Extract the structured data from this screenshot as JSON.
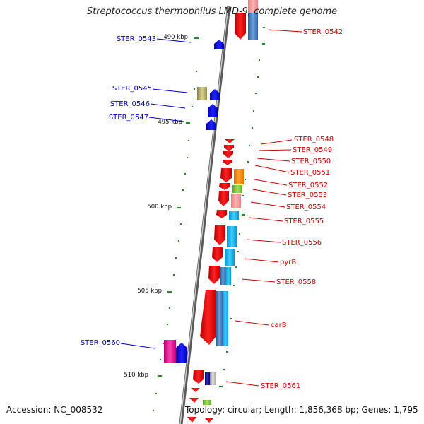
{
  "title": "Streptococcus thermophilus LMD-9, complete genome",
  "footer": {
    "accession": "Accession: NC_008532",
    "topology": "Topology: circular; Length: 1,856,368 bp; Genes: 1,795"
  },
  "colors": {
    "left_label": "#0000cc",
    "right_label": "#cc0000",
    "backbone": "#808080",
    "tick": "#228b22"
  },
  "ticks": [
    "490 kbp",
    "495 kbp",
    "500 kbp",
    "505 kbp",
    "510 kbp"
  ],
  "left_genes": [
    "STER_0543",
    "STER_0545",
    "STER_0546",
    "STER_0547",
    "STER_0560"
  ],
  "right_genes": [
    "STER_0542",
    "STER_0548",
    "STER_0549",
    "STER_0550",
    "STER_0551",
    "STER_0552",
    "STER_0553",
    "STER_0554",
    "STER_0555",
    "STER_0556",
    "pyrB",
    "STER_0558",
    "carB",
    "STER_0561"
  ]
}
